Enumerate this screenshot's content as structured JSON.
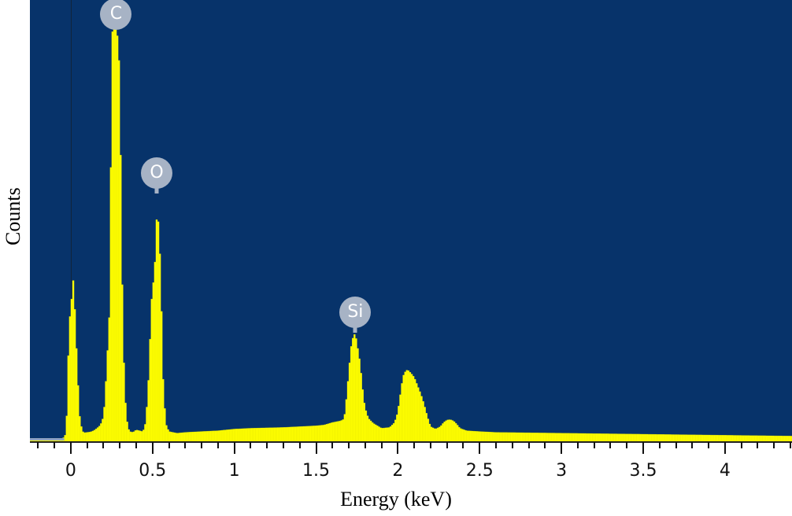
{
  "chart_data": {
    "type": "bar",
    "title": "",
    "xlabel": "Energy (keV)",
    "ylabel": "Counts",
    "xlim": [
      -0.25,
      4.41
    ],
    "ylim": [
      0,
      1000
    ],
    "grid": false,
    "legend": null,
    "x_ticks": [
      0,
      0.5,
      1,
      1.5,
      2,
      2.5,
      3,
      3.5,
      4
    ],
    "x_tick_labels": [
      "0",
      "0.5",
      "1",
      "1.5",
      "2",
      "2.5",
      "3",
      "3.5",
      "4"
    ],
    "minor_tick_step": 0.1,
    "bar_color": "#FFFF00",
    "background_color": "#07336A",
    "annotations": [
      {
        "label": "C",
        "energy": 0.277,
        "counts": 1000
      },
      {
        "label": "O",
        "energy": 0.525,
        "counts": 596
      },
      {
        "label": "Si",
        "energy": 1.74,
        "counts": 258
      }
    ],
    "series": [
      {
        "name": "EDS spectrum",
        "points": [
          [
            -0.25,
            0
          ],
          [
            -0.05,
            0
          ],
          [
            -0.04,
            6
          ],
          [
            -0.03,
            12
          ],
          [
            -0.02,
            100
          ],
          [
            -0.01,
            305
          ],
          [
            0.0,
            290
          ],
          [
            0.01,
            390
          ],
          [
            0.02,
            380
          ],
          [
            0.03,
            250
          ],
          [
            0.04,
            190
          ],
          [
            0.05,
            70
          ],
          [
            0.06,
            40
          ],
          [
            0.07,
            20
          ],
          [
            0.08,
            15
          ],
          [
            0.1,
            16
          ],
          [
            0.12,
            17
          ],
          [
            0.14,
            20
          ],
          [
            0.16,
            26
          ],
          [
            0.18,
            33
          ],
          [
            0.19,
            42
          ],
          [
            0.2,
            55
          ],
          [
            0.21,
            100
          ],
          [
            0.22,
            180
          ],
          [
            0.23,
            250
          ],
          [
            0.24,
            340
          ],
          [
            0.25,
            980
          ],
          [
            0.26,
            1000
          ],
          [
            0.27,
            1000
          ],
          [
            0.28,
            1000
          ],
          [
            0.29,
            960
          ],
          [
            0.3,
            880
          ],
          [
            0.31,
            500
          ],
          [
            0.32,
            250
          ],
          [
            0.33,
            120
          ],
          [
            0.34,
            55
          ],
          [
            0.35,
            28
          ],
          [
            0.36,
            18
          ],
          [
            0.38,
            16
          ],
          [
            0.4,
            22
          ],
          [
            0.42,
            20
          ],
          [
            0.44,
            18
          ],
          [
            0.45,
            26
          ],
          [
            0.46,
            45
          ],
          [
            0.47,
            110
          ],
          [
            0.48,
            175
          ],
          [
            0.49,
            310
          ],
          [
            0.5,
            370
          ],
          [
            0.51,
            390
          ],
          [
            0.52,
            470
          ],
          [
            0.53,
            596
          ],
          [
            0.54,
            460
          ],
          [
            0.55,
            440
          ],
          [
            0.56,
            180
          ],
          [
            0.57,
            110
          ],
          [
            0.58,
            38
          ],
          [
            0.6,
            18
          ],
          [
            0.65,
            14
          ],
          [
            0.7,
            16
          ],
          [
            0.8,
            18
          ],
          [
            0.9,
            20
          ],
          [
            1.0,
            24
          ],
          [
            1.1,
            26
          ],
          [
            1.2,
            27
          ],
          [
            1.3,
            28
          ],
          [
            1.4,
            30
          ],
          [
            1.5,
            32
          ],
          [
            1.55,
            34
          ],
          [
            1.6,
            40
          ],
          [
            1.65,
            44
          ],
          [
            1.67,
            48
          ],
          [
            1.68,
            72
          ],
          [
            1.69,
            120
          ],
          [
            1.7,
            160
          ],
          [
            1.71,
            210
          ],
          [
            1.72,
            240
          ],
          [
            1.73,
            250
          ],
          [
            1.74,
            258
          ],
          [
            1.75,
            230
          ],
          [
            1.76,
            210
          ],
          [
            1.77,
            180
          ],
          [
            1.78,
            140
          ],
          [
            1.79,
            100
          ],
          [
            1.8,
            75
          ],
          [
            1.82,
            50
          ],
          [
            1.85,
            38
          ],
          [
            1.9,
            26
          ],
          [
            1.95,
            28
          ],
          [
            1.98,
            40
          ],
          [
            2.0,
            65
          ],
          [
            2.01,
            95
          ],
          [
            2.02,
            120
          ],
          [
            2.03,
            150
          ],
          [
            2.04,
            160
          ],
          [
            2.05,
            166
          ],
          [
            2.06,
            168
          ],
          [
            2.07,
            164
          ],
          [
            2.08,
            160
          ],
          [
            2.1,
            150
          ],
          [
            2.12,
            130
          ],
          [
            2.14,
            110
          ],
          [
            2.16,
            85
          ],
          [
            2.18,
            55
          ],
          [
            2.2,
            30
          ],
          [
            2.23,
            24
          ],
          [
            2.26,
            30
          ],
          [
            2.28,
            40
          ],
          [
            2.3,
            46
          ],
          [
            2.32,
            47
          ],
          [
            2.34,
            44
          ],
          [
            2.36,
            36
          ],
          [
            2.38,
            26
          ],
          [
            2.42,
            20
          ],
          [
            2.5,
            18
          ],
          [
            2.6,
            16
          ],
          [
            2.8,
            15
          ],
          [
            3.0,
            14
          ],
          [
            3.2,
            13
          ],
          [
            3.4,
            12
          ],
          [
            3.6,
            11
          ],
          [
            3.8,
            10
          ],
          [
            4.0,
            9
          ],
          [
            4.2,
            8
          ],
          [
            4.41,
            7
          ]
        ]
      }
    ]
  },
  "axes": {
    "xlabel": "Energy (keV)",
    "ylabel": "Counts",
    "tick_labels": [
      "0",
      "0.5",
      "1",
      "1.5",
      "2",
      "2.5",
      "3",
      "3.5",
      "4"
    ]
  },
  "markers": [
    {
      "label": "C"
    },
    {
      "label": "O"
    },
    {
      "label": "Si"
    }
  ]
}
